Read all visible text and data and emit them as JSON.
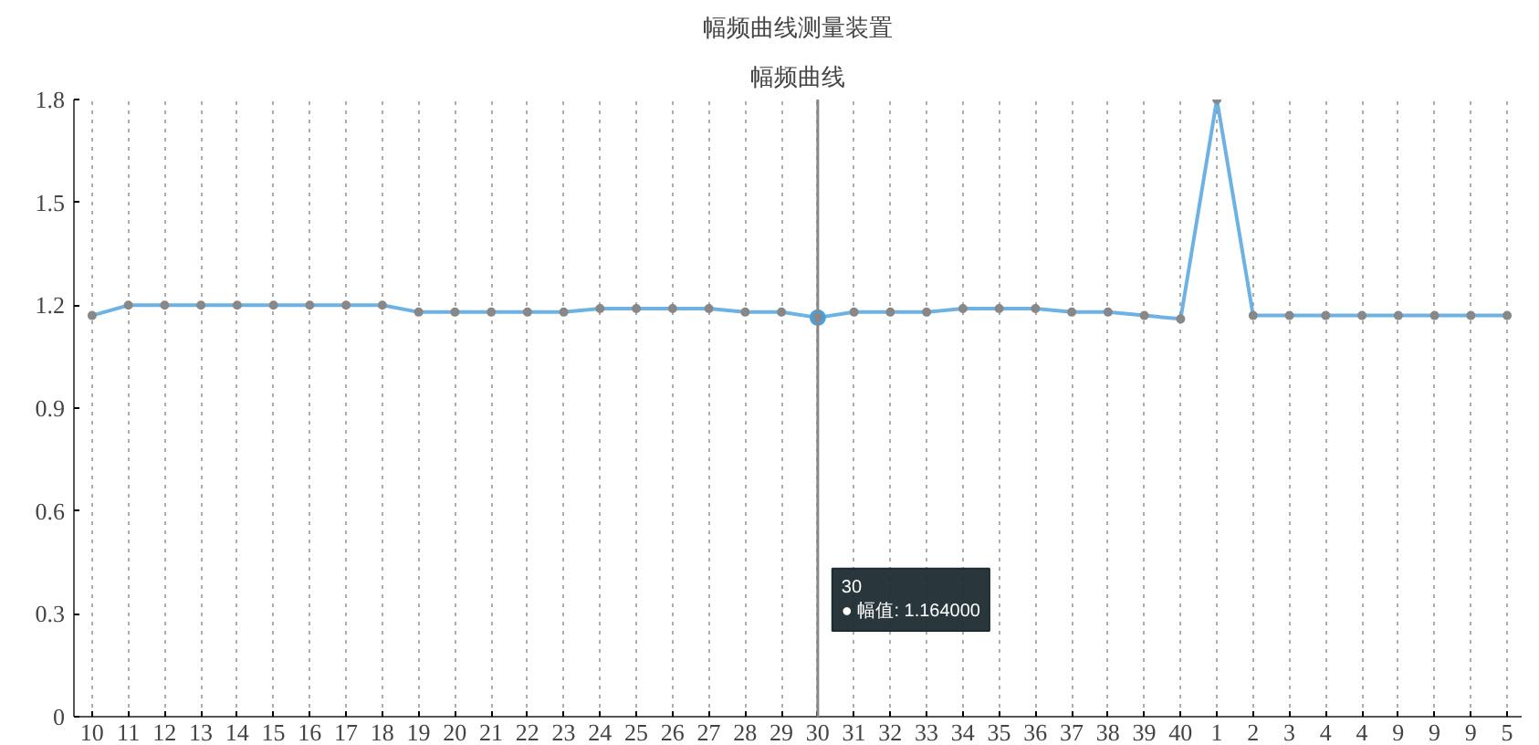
{
  "chart_data": {
    "type": "line",
    "title": "幅频曲线测量装置",
    "subtitle": "幅频曲线",
    "categories": [
      "10",
      "11",
      "12",
      "13",
      "14",
      "15",
      "16",
      "17",
      "18",
      "19",
      "20",
      "21",
      "22",
      "23",
      "24",
      "25",
      "26",
      "27",
      "28",
      "29",
      "30",
      "31",
      "32",
      "33",
      "34",
      "35",
      "36",
      "37",
      "38",
      "39",
      "40",
      "1",
      "2",
      "3",
      "4",
      "4",
      "9",
      "9",
      "9",
      "5"
    ],
    "series": [
      {
        "color": "#4a9fdc",
        "values": [
          1.17,
          1.2,
          1.2,
          1.2,
          1.2,
          1.2,
          1.2,
          1.2,
          1.2,
          1.18,
          1.18,
          1.18,
          1.18,
          1.18,
          1.19,
          1.19,
          1.19,
          1.19,
          1.18,
          1.18,
          1.164,
          1.18,
          1.18,
          1.18,
          1.19,
          1.19,
          1.19,
          1.18,
          1.18,
          1.17,
          1.16,
          1.8,
          1.17,
          1.17,
          1.17,
          1.17,
          1.17,
          1.17,
          1.17,
          1.17
        ]
      }
    ],
    "ylim": [
      0,
      1.8
    ],
    "yticks": [
      0,
      {
        "value": 0.3,
        "label": "0.3"
      },
      {
        "value": 0.6,
        "label": "0.6"
      },
      {
        "value": 0.9,
        "label": "0.9"
      },
      {
        "value": 1.2,
        "label": "1.2"
      },
      {
        "value": 1.5,
        "label": "1.5"
      },
      {
        "value": 1.8,
        "label": "1.8"
      }
    ],
    "grid": "x",
    "marker": "circle",
    "line_style": "solid",
    "ref_lines": [
      {
        "axis": "x",
        "value": "30",
        "color": "#888888",
        "line_style": "solid"
      }
    ],
    "annotations": [
      "30\n● 幅值: 1.164000"
    ]
  }
}
